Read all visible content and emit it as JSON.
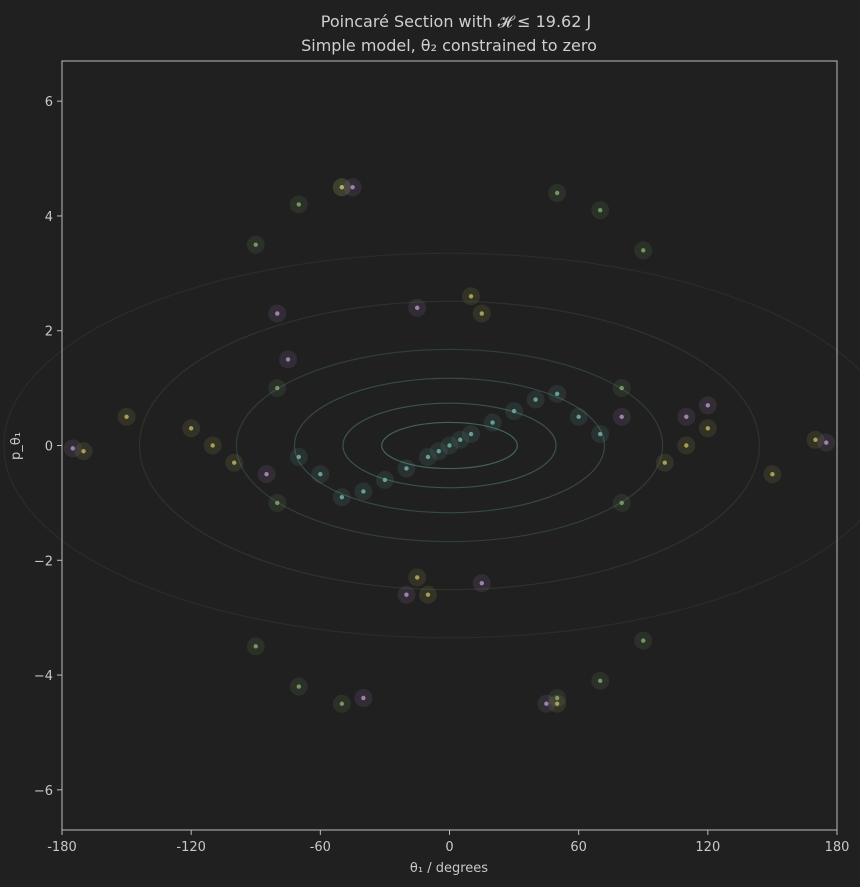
{
  "chart_data": {
    "type": "scatter",
    "title": "Poincaré Section with 𝓗 ≤ 19.62 J",
    "subtitle": "Simple model, θ₂ constrained to zero",
    "xlabel": "θ₁ / degrees",
    "ylabel": "p_θ₁",
    "xlim": [
      -180,
      180
    ],
    "ylim": [
      -6.7,
      6.7
    ],
    "xticks": [
      -180,
      -120,
      -60,
      0,
      60,
      120,
      180
    ],
    "xtick_labels": [
      "-180",
      "-120",
      "-60",
      "0",
      "60",
      "120",
      "180"
    ],
    "yticks": [
      -6,
      -4,
      -2,
      0,
      2,
      4,
      6
    ],
    "ytick_labels": [
      "−6",
      "−4",
      "−2",
      "0",
      "2",
      "4",
      "6"
    ],
    "grid": false,
    "colors": {
      "background": "#202020",
      "axes_frame": "#bdbdbd",
      "teal": "#6fb3a8",
      "green": "#7fa86a",
      "olive": "#b8b35a",
      "purple": "#b48fc6"
    },
    "series": [
      {
        "color": "#6fb3a8",
        "description_points": [
          [
            0,
            0
          ],
          [
            5,
            0.1
          ],
          [
            10,
            0.2
          ],
          [
            -5,
            -0.1
          ],
          [
            -10,
            -0.2
          ],
          [
            20,
            0.4
          ],
          [
            -20,
            -0.4
          ],
          [
            30,
            0.6
          ],
          [
            -30,
            -0.6
          ],
          [
            40,
            0.8
          ],
          [
            -40,
            -0.8
          ],
          [
            50,
            0.9
          ],
          [
            -50,
            -0.9
          ],
          [
            60,
            0.5
          ],
          [
            -60,
            -0.5
          ],
          [
            70,
            0.2
          ],
          [
            -70,
            -0.2
          ]
        ]
      },
      {
        "color": "#7fa86a",
        "description_points": [
          [
            -90,
            3.5
          ],
          [
            -70,
            4.2
          ],
          [
            -50,
            4.5
          ],
          [
            50,
            4.4
          ],
          [
            70,
            4.1
          ],
          [
            90,
            3.4
          ],
          [
            -90,
            -3.5
          ],
          [
            -70,
            -4.2
          ],
          [
            -50,
            -4.5
          ],
          [
            50,
            -4.4
          ],
          [
            70,
            -4.1
          ],
          [
            90,
            -3.4
          ],
          [
            -80,
            1.0
          ],
          [
            80,
            1.0
          ],
          [
            -80,
            -1.0
          ],
          [
            80,
            -1.0
          ]
        ]
      },
      {
        "color": "#b8b35a",
        "description_points": [
          [
            -120,
            0.3
          ],
          [
            -110,
            0.0
          ],
          [
            -100,
            -0.3
          ],
          [
            120,
            0.3
          ],
          [
            110,
            0.0
          ],
          [
            100,
            -0.3
          ],
          [
            10,
            2.6
          ],
          [
            15,
            2.3
          ],
          [
            -10,
            -2.6
          ],
          [
            -15,
            -2.3
          ],
          [
            50,
            -4.5
          ],
          [
            -50,
            4.5
          ],
          [
            170,
            0.1
          ],
          [
            -170,
            -0.1
          ],
          [
            150,
            -0.5
          ],
          [
            -150,
            0.5
          ]
        ]
      },
      {
        "color": "#b48fc6",
        "description_points": [
          [
            -80,
            2.3
          ],
          [
            -75,
            1.5
          ],
          [
            -85,
            -0.5
          ],
          [
            80,
            0.5
          ],
          [
            110,
            0.5
          ],
          [
            120,
            0.7
          ],
          [
            -15,
            2.4
          ],
          [
            -20,
            -2.6
          ],
          [
            15,
            -2.4
          ],
          [
            -45,
            4.5
          ],
          [
            45,
            -4.5
          ],
          [
            -40,
            -4.4
          ],
          [
            -175,
            -0.05
          ],
          [
            175,
            0.05
          ]
        ]
      }
    ]
  }
}
